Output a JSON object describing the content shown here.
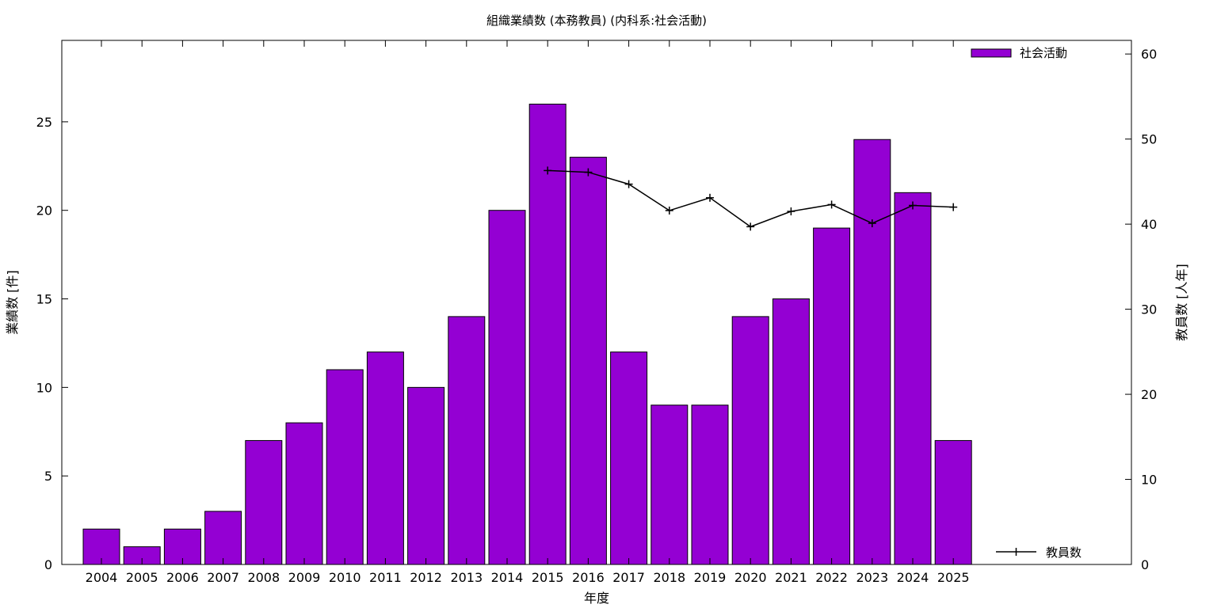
{
  "chart_data": {
    "type": "bar",
    "title": "組織業績数 (本務教員) (内科系:社会活動)",
    "xlabel": "年度",
    "ylabel": "業績数 [件]",
    "y2label": "教員数 [人年]",
    "categories": [
      "2004",
      "2005",
      "2006",
      "2007",
      "2008",
      "2009",
      "2010",
      "2011",
      "2012",
      "2013",
      "2014",
      "2015",
      "2016",
      "2017",
      "2018",
      "2019",
      "2020",
      "2021",
      "2022",
      "2023",
      "2024",
      "2025"
    ],
    "ylim": [
      0,
      29.6
    ],
    "y2lim": [
      0,
      61.6
    ],
    "yticks": [
      0,
      5,
      10,
      15,
      20,
      25
    ],
    "y2ticks": [
      0,
      10,
      20,
      30,
      40,
      50,
      60
    ],
    "grid": false,
    "legend_bar_position": "top-right",
    "legend_line_position": "bottom-right",
    "series": [
      {
        "name": "社会活動",
        "type": "bar",
        "axis": "left",
        "color": "#9400D3",
        "values": [
          2,
          1,
          2,
          3,
          7,
          8,
          11,
          12,
          10,
          14,
          20,
          26,
          23,
          12,
          9,
          9,
          14,
          15,
          19,
          24,
          21,
          7
        ]
      },
      {
        "name": "教員数",
        "type": "line",
        "axis": "right",
        "color": "#000000",
        "values": [
          null,
          null,
          null,
          null,
          null,
          null,
          null,
          null,
          null,
          null,
          null,
          46.3,
          46.1,
          44.7,
          41.6,
          43.1,
          39.7,
          41.5,
          42.3,
          40.1,
          42.2,
          42.0
        ]
      }
    ]
  }
}
